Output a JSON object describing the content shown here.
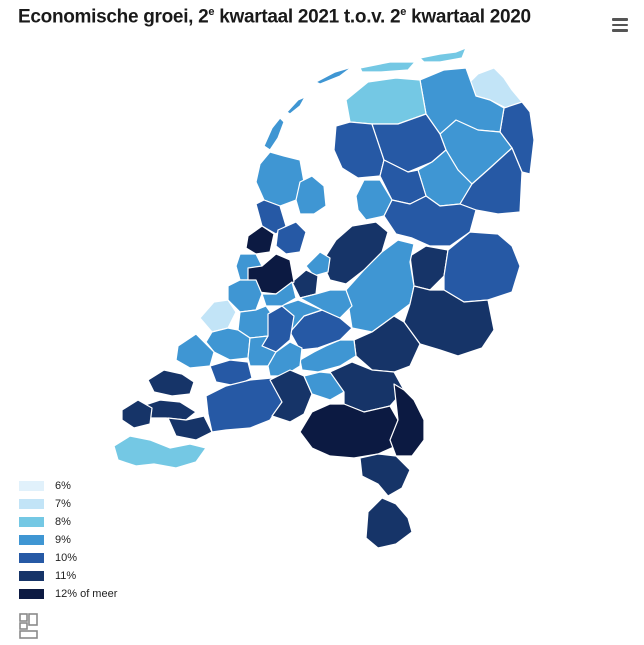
{
  "title": {
    "prefix": "Economische groei, 2",
    "sup1": "e",
    "middle": " kwartaal 2021 t.o.v. 2",
    "sup2": "e",
    "suffix": " kwartaal 2020"
  },
  "menu_icon": "hamburger-menu-icon",
  "legend": {
    "items": [
      {
        "label": "6%",
        "color": "#e1f1fb"
      },
      {
        "label": "7%",
        "color": "#c2e4f7"
      },
      {
        "label": "8%",
        "color": "#74c8e4"
      },
      {
        "label": "9%",
        "color": "#3f96d3"
      },
      {
        "label": "10%",
        "color": "#2659a5"
      },
      {
        "label": "11%",
        "color": "#163468"
      },
      {
        "label": "12% of meer",
        "color": "#0c1a42"
      }
    ]
  },
  "logo_icon": "cbs-logo"
}
